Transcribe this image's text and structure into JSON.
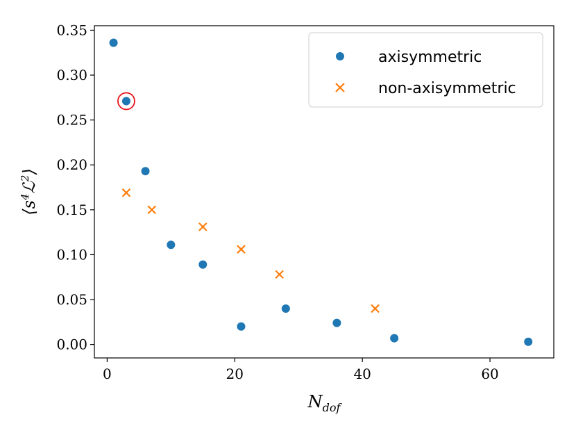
{
  "chart_data": {
    "type": "scatter",
    "xlabel": "N_dof",
    "ylabel": "⟨s⁴ℒ²⟩",
    "xlim": [
      -2,
      70
    ],
    "ylim": [
      -0.015,
      0.355
    ],
    "xticks": [
      0,
      20,
      40,
      60
    ],
    "xtick_labels": [
      "0",
      "20",
      "40",
      "60"
    ],
    "yticks": [
      0.0,
      0.05,
      0.1,
      0.15,
      0.2,
      0.25,
      0.3,
      0.35
    ],
    "ytick_labels": [
      "0.00",
      "0.05",
      "0.10",
      "0.15",
      "0.20",
      "0.25",
      "0.30",
      "0.35"
    ],
    "grid": false,
    "legend_position": "top-right",
    "series": [
      {
        "name": "axisymmetric",
        "marker": "circle",
        "color": "#1f77b4",
        "x": [
          1,
          3,
          6,
          10,
          15,
          21,
          28,
          36,
          45,
          66
        ],
        "y": [
          0.336,
          0.271,
          0.193,
          0.111,
          0.089,
          0.02,
          0.04,
          0.024,
          0.007,
          0.003
        ]
      },
      {
        "name": "non-axisymmetric",
        "marker": "x",
        "color": "#ff7f0e",
        "x": [
          3,
          7,
          15,
          21,
          27,
          42
        ],
        "y": [
          0.169,
          0.15,
          0.131,
          0.106,
          0.078,
          0.04
        ]
      }
    ],
    "annotations": [
      {
        "type": "circle-highlight",
        "color": "#e8141c",
        "x": 3,
        "y": 0.271
      }
    ]
  }
}
